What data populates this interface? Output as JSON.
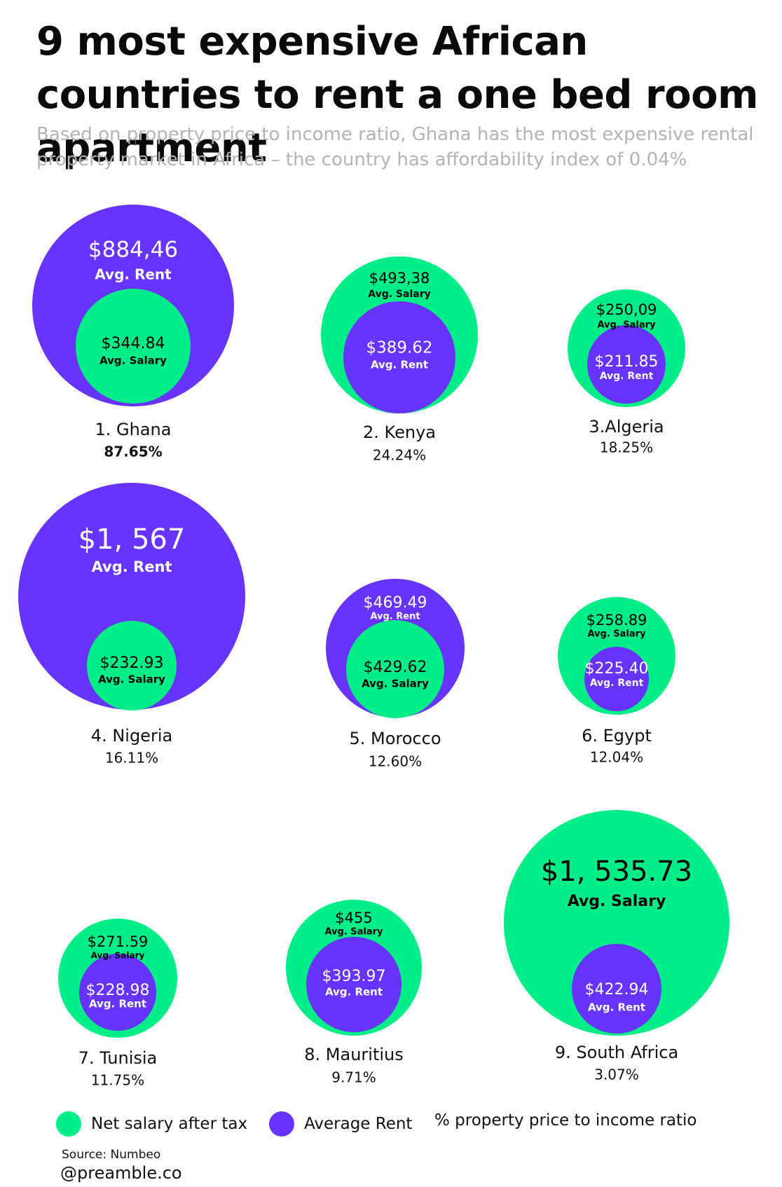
{
  "title": "9 most expensive African countries to rent a one bed room apartment",
  "subtitle": "Based on property price to income ratio, Ghana has the most expensive rental property market in Africa – the country has affordability index of 0.04%",
  "colors": {
    "salary": "#00ee88",
    "rent": "#6633ff"
  },
  "legend": {
    "salary": "Net salary after tax",
    "rent": "Average Rent",
    "ratio": "% property price to income ratio"
  },
  "source": "Source: Numbeo",
  "handle": "@preamble.co",
  "chart_data": {
    "type": "nested-bubble",
    "countries": [
      {
        "rank": 1,
        "label": "1. Ghana",
        "ratio": "87.65%",
        "outer": "rent",
        "outer_value_text": "$884,46",
        "outer_caption": "Avg. Rent",
        "inner_value_text": "$344.84",
        "inner_caption": "Avg. Salary",
        "rent": 884.46,
        "salary": 344.84
      },
      {
        "rank": 2,
        "label": "2. Kenya",
        "ratio": "24.24%",
        "outer": "salary",
        "outer_value_text": "$493,38",
        "outer_caption": "Avg. Salary",
        "inner_value_text": "$389.62",
        "inner_caption": "Avg. Rent",
        "rent": 389.62,
        "salary": 493.38
      },
      {
        "rank": 3,
        "label": "3.Algeria",
        "ratio": "18.25%",
        "outer": "salary",
        "outer_value_text": "$250,09",
        "outer_caption": "Avg. Salary",
        "inner_value_text": "$211.85",
        "inner_caption": "Avg. Rent",
        "rent": 211.85,
        "salary": 250.09
      },
      {
        "rank": 4,
        "label": "4. Nigeria",
        "ratio": "16.11%",
        "outer": "rent",
        "outer_value_text": "$1, 567",
        "outer_caption": "Avg. Rent",
        "inner_value_text": "$232.93",
        "inner_caption": "Avg. Salary",
        "rent": 1567,
        "salary": 232.93
      },
      {
        "rank": 5,
        "label": "5. Morocco",
        "ratio": "12.60%",
        "outer": "rent",
        "outer_value_text": "$469.49",
        "outer_caption": "Avg. Rent",
        "inner_value_text": "$429.62",
        "inner_caption": "Avg. Salary",
        "rent": 469.49,
        "salary": 429.62
      },
      {
        "rank": 6,
        "label": "6. Egypt",
        "ratio": "12.04%",
        "outer": "salary",
        "outer_value_text": "$258.89",
        "outer_caption": "Avg. Salary",
        "inner_value_text": "$225.40",
        "inner_caption": "Avg. Rent",
        "rent": 225.4,
        "salary": 258.89
      },
      {
        "rank": 7,
        "label": "7. Tunisia",
        "ratio": "11.75%",
        "outer": "salary",
        "outer_value_text": "$271.59",
        "outer_caption": "Avg. Salary",
        "inner_value_text": "$228.98",
        "inner_caption": "Avg. Rent",
        "rent": 228.98,
        "salary": 271.59
      },
      {
        "rank": 8,
        "label": "8. Mauritius",
        "ratio": "9.71%",
        "outer": "salary",
        "outer_value_text": "$455",
        "outer_caption": "Avg. Salary",
        "inner_value_text": "$393.97",
        "inner_caption": "Avg. Rent",
        "rent": 393.97,
        "salary": 455
      },
      {
        "rank": 9,
        "label": "9. South Africa",
        "ratio": "3.07%",
        "outer": "salary",
        "outer_value_text": "$1, 535.73",
        "outer_caption": "Avg. Salary",
        "inner_value_text": "$422.94",
        "inner_caption": "Avg. Rent",
        "rent": 422.94,
        "salary": 1535.73
      }
    ]
  }
}
